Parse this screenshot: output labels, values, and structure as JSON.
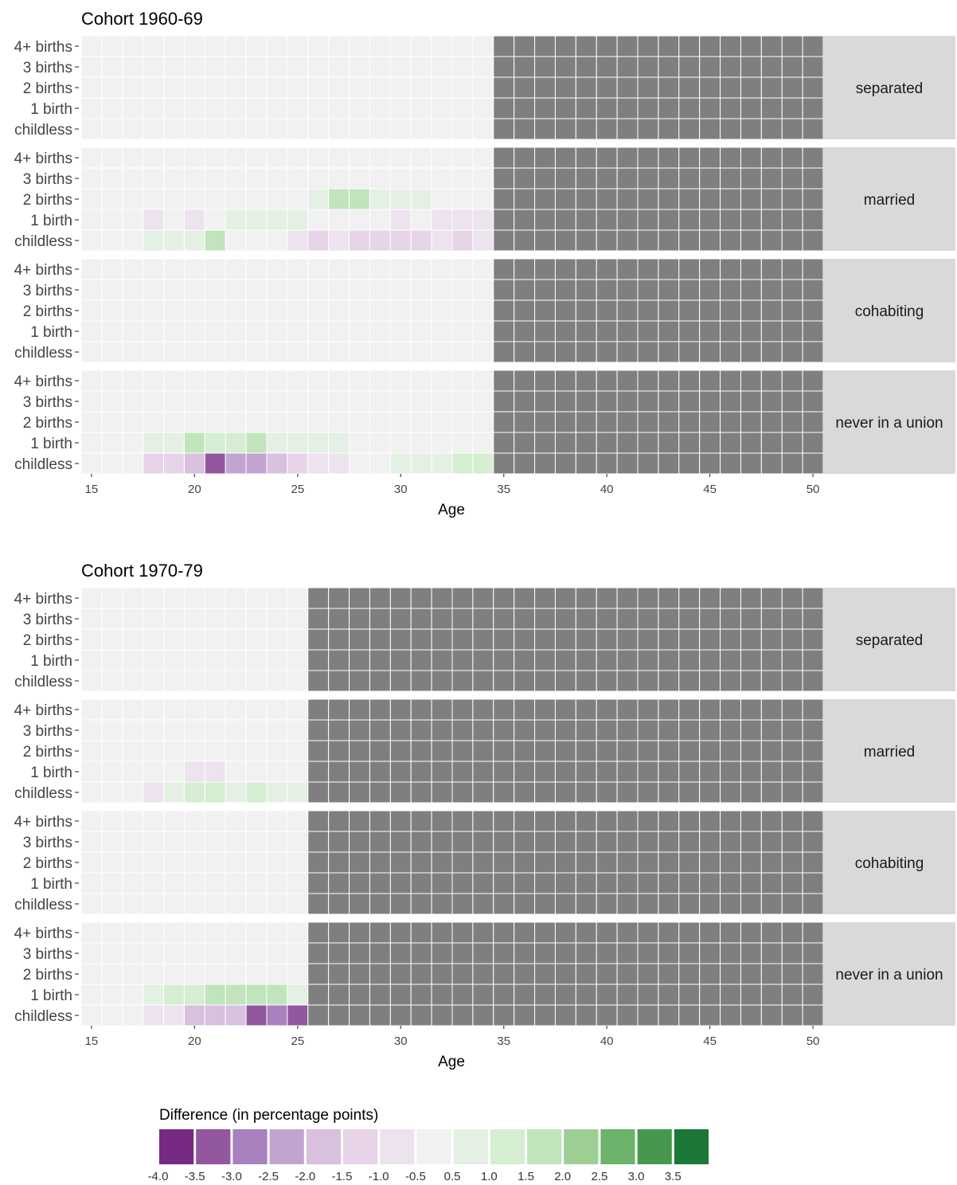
{
  "chart_data": {
    "type": "heatmap",
    "x_axis_label": "Age",
    "x_ticks": [
      15,
      20,
      25,
      30,
      35,
      40,
      45,
      50
    ],
    "x_range": [
      15,
      50
    ],
    "row_labels": [
      "4+ births",
      "3 births",
      "2 births",
      "1 birth",
      "childless"
    ],
    "facets": [
      "separated",
      "married",
      "cohabiting",
      "never in a union"
    ],
    "na_color": "#7f7f7f",
    "panels": [
      {
        "title": "Cohort 1960-69",
        "observed_max_age": 34,
        "cells": [
          {
            "facet": "married",
            "row": "2 births",
            "values": {
              "26": 0.5,
              "27": 1.5,
              "28": 1.5,
              "29": 0.5,
              "30": 0.5,
              "31": 0.5
            }
          },
          {
            "facet": "married",
            "row": "1 birth",
            "values": {
              "18": -0.5,
              "20": -0.5,
              "22": 0.5,
              "23": 0.5,
              "24": 0.5,
              "25": 0.5,
              "30": -0.5,
              "32": -0.5,
              "33": -0.5,
              "34": -0.5
            }
          },
          {
            "facet": "married",
            "row": "childless",
            "values": {
              "18": 0.5,
              "19": 0.5,
              "20": 0.5,
              "21": 1.5,
              "25": -1.0,
              "26": -1.5,
              "27": -1.0,
              "28": -1.5,
              "29": -1.5,
              "30": -1.5,
              "31": -1.5,
              "32": -1.0,
              "33": -1.5,
              "34": -1.0
            }
          },
          {
            "facet": "never in a union",
            "row": "1 birth",
            "values": {
              "18": 0.5,
              "19": 0.5,
              "20": 1.5,
              "21": 1.0,
              "22": 1.0,
              "23": 1.5,
              "24": 0.5,
              "25": 0.5,
              "26": 0.5,
              "27": 0.5
            }
          },
          {
            "facet": "never in a union",
            "row": "childless",
            "values": {
              "18": -1.5,
              "19": -1.5,
              "20": -2.0,
              "21": -3.5,
              "22": -2.5,
              "23": -2.5,
              "24": -2.0,
              "25": -1.5,
              "26": -1.0,
              "27": -1.0,
              "30": 0.5,
              "31": 0.5,
              "32": 0.5,
              "33": 1.0,
              "34": 1.0
            }
          }
        ]
      },
      {
        "title": "Cohort 1970-79",
        "observed_max_age": 25,
        "cells": [
          {
            "facet": "married",
            "row": "1 birth",
            "values": {
              "20": -0.5,
              "21": -0.5
            }
          },
          {
            "facet": "married",
            "row": "childless",
            "values": {
              "18": -0.3,
              "19": 0.5,
              "20": 1.0,
              "21": 1.0,
              "22": 0.5,
              "23": 1.0,
              "24": 0.5,
              "25": 0.5
            }
          },
          {
            "facet": "never in a union",
            "row": "1 birth",
            "values": {
              "18": 0.5,
              "19": 1.0,
              "20": 1.0,
              "21": 1.5,
              "22": 1.5,
              "23": 1.5,
              "24": 1.5,
              "25": 0.5
            }
          },
          {
            "facet": "never in a union",
            "row": "childless",
            "values": {
              "18": -0.5,
              "19": -1.0,
              "20": -2.0,
              "21": -2.0,
              "22": -2.0,
              "23": -3.5,
              "24": -3.0,
              "25": -3.5
            }
          }
        ]
      }
    ],
    "legend": {
      "title": "Difference (in percentage points)",
      "labels": [
        "-4.0",
        "-3.5",
        "-3.0",
        "-2.5",
        "-2.0",
        "-1.5",
        "-1.0",
        "-0.5",
        "0.5",
        "1.0",
        "1.5",
        "2.0",
        "2.5",
        "3.0",
        "3.5"
      ],
      "colors": [
        "#762a83",
        "#9357a0",
        "#a981bf",
        "#c2a4d1",
        "#d8c0df",
        "#e7d4e9",
        "#ece3ee",
        "#f1f1f1",
        "#e4f0e3",
        "#d5eed2",
        "#c1e4bd",
        "#9dcf94",
        "#6db26a",
        "#47984e",
        "#1b7837"
      ]
    }
  }
}
